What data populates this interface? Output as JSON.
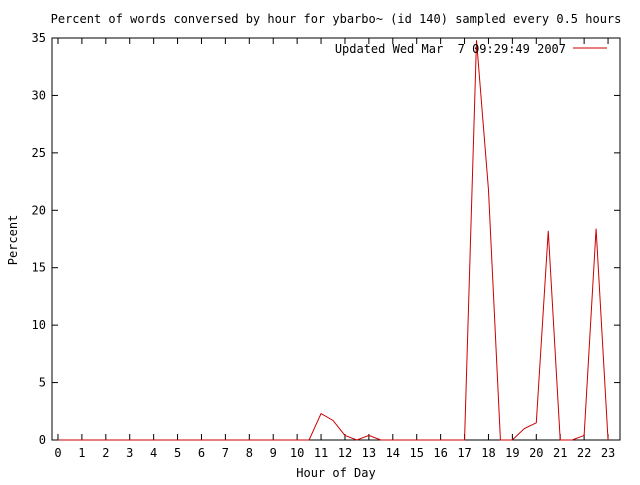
{
  "chart_data": {
    "type": "line",
    "title": "Percent of words conversed by hour for ybarbo~ (id 140) sampled every 0.5 hours",
    "xlabel": "Hour of Day",
    "ylabel": "Percent",
    "xlim": [
      -0.25,
      23.5
    ],
    "ylim": [
      0,
      35
    ],
    "x_ticks": [
      0,
      1,
      2,
      3,
      4,
      5,
      6,
      7,
      8,
      9,
      10,
      11,
      12,
      13,
      14,
      15,
      16,
      17,
      18,
      19,
      20,
      21,
      22,
      23
    ],
    "y_ticks": [
      0,
      5,
      10,
      15,
      20,
      25,
      30,
      35
    ],
    "grid": false,
    "legend": {
      "position": "top-right"
    },
    "series": [
      {
        "name": "Updated Wed Mar  7 09:29:49 2007",
        "color": "#cc0000",
        "x": [
          0,
          0.5,
          1,
          1.5,
          2,
          2.5,
          3,
          3.5,
          4,
          4.5,
          5,
          5.5,
          6,
          6.5,
          7,
          7.5,
          8,
          8.5,
          9,
          9.5,
          10,
          10.5,
          11,
          11.5,
          12,
          12.5,
          13,
          13.5,
          14,
          14.5,
          15,
          15.5,
          16,
          16.5,
          17,
          17.5,
          18,
          18.5,
          19,
          19.5,
          20,
          20.5,
          21,
          21.5,
          22,
          22.5,
          23
        ],
        "values": [
          0,
          0,
          0,
          0,
          0,
          0,
          0,
          0,
          0,
          0,
          0,
          0,
          0,
          0,
          0,
          0,
          0,
          0,
          0,
          0,
          0,
          0,
          2.3,
          1.7,
          0.4,
          0,
          0.4,
          0,
          0,
          0,
          0,
          0,
          0,
          0,
          0,
          34.8,
          21.8,
          0,
          0,
          1.0,
          1.5,
          18.2,
          0,
          0,
          0.4,
          18.4,
          0
        ]
      }
    ]
  }
}
